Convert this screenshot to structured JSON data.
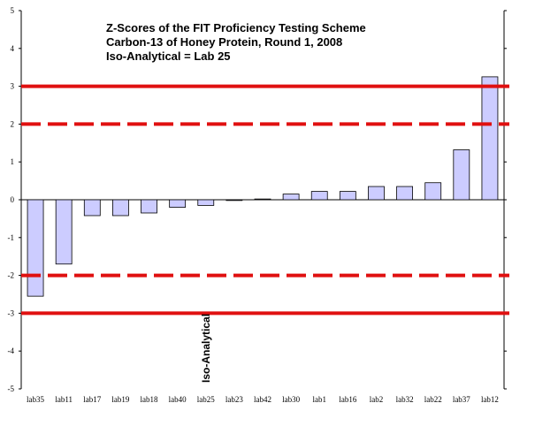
{
  "chart_data": {
    "type": "bar",
    "title": "Z-Scores of the FIT Proficiency Testing Scheme",
    "subtitle": "Carbon-13 of Honey Protein, Round 1, 2008",
    "note": "Iso-Analytical = Lab 25",
    "categories": [
      "lab35",
      "lab11",
      "lab17",
      "lab19",
      "lab18",
      "lab40",
      "lab25",
      "lab23",
      "lab42",
      "lab30",
      "lab1",
      "lab16",
      "lab2",
      "lab32",
      "lab22",
      "lab37",
      "lab12"
    ],
    "values": [
      -2.55,
      -1.7,
      -0.42,
      -0.42,
      -0.35,
      -0.2,
      -0.15,
      -0.02,
      0.02,
      0.15,
      0.22,
      0.22,
      0.35,
      0.35,
      0.45,
      1.32,
      3.25
    ],
    "ylim": [
      -5,
      5
    ],
    "yticks": [
      "-5",
      "-4",
      "-3",
      "-2",
      "-1",
      "0",
      "1",
      "2",
      "3",
      "4",
      "5"
    ],
    "reference_lines": [
      {
        "value": 3,
        "style": "solid"
      },
      {
        "value": -3,
        "style": "solid"
      },
      {
        "value": 2,
        "style": "dashed"
      },
      {
        "value": -2,
        "style": "dashed"
      }
    ],
    "annotation": {
      "label": "Iso-Analytical",
      "category": "lab25"
    },
    "colors": {
      "bar_fill": "#ccccff",
      "bar_stroke": "#000000",
      "ref_line": "#e01010"
    },
    "grid": false
  }
}
